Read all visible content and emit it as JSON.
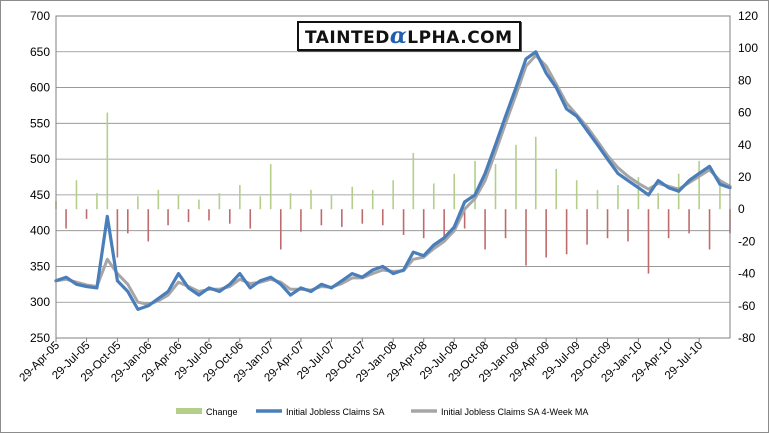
{
  "logo": {
    "text": "TaintedAlpha.com",
    "prefix": "TAINTED",
    "alpha_glyph": "α",
    "suffix": "LPHA.COM"
  },
  "colors": {
    "change_bar_pos": "#b3cf8a",
    "change_bar_neg": "#c06b6b",
    "claims_line": "#4a7ebb",
    "ma_line": "#a6a6a6",
    "grid": "#8c8c8c"
  },
  "chart_data": {
    "type": "combo",
    "title": "",
    "xlabel": "",
    "ylabel_left": "",
    "ylabel_right": "",
    "x_range": [
      "2005-04-29",
      "2010-10-29"
    ],
    "ylim_left": [
      250,
      700
    ],
    "yticks_left": [
      250,
      300,
      350,
      400,
      450,
      500,
      550,
      600,
      650,
      700
    ],
    "ylim_right": [
      -80,
      120
    ],
    "yticks_right": [
      -80,
      -60,
      -40,
      -20,
      0,
      20,
      40,
      60,
      80,
      100,
      120
    ],
    "x_tick_labels": [
      "29-Apr-05",
      "29-Jul-05",
      "29-Oct-05",
      "29-Jan-06",
      "29-Apr-06",
      "29-Jul-06",
      "29-Oct-06",
      "29-Jan-07",
      "29-Apr-07",
      "29-Jul-07",
      "29-Oct-07",
      "29-Jan-08",
      "29-Apr-08",
      "29-Jul-08",
      "29-Oct-08",
      "29-Jan-09",
      "29-Apr-09",
      "29-Jul-09",
      "29-Oct-09",
      "29-Jan-10",
      "29-Apr-10",
      "29-Jul-10"
    ],
    "grid": "horizontal",
    "legend_position": "bottom",
    "x_dates": [
      "2005-04-29",
      "2005-05-29",
      "2005-06-29",
      "2005-07-29",
      "2005-08-29",
      "2005-09-29",
      "2005-10-29",
      "2005-11-29",
      "2005-12-29",
      "2006-01-29",
      "2006-02-28",
      "2006-03-29",
      "2006-04-29",
      "2006-05-29",
      "2006-06-29",
      "2006-07-29",
      "2006-08-29",
      "2006-09-29",
      "2006-10-29",
      "2006-11-29",
      "2006-12-29",
      "2007-01-29",
      "2007-02-28",
      "2007-03-29",
      "2007-04-29",
      "2007-05-29",
      "2007-06-29",
      "2007-07-29",
      "2007-08-29",
      "2007-09-29",
      "2007-10-29",
      "2007-11-29",
      "2007-12-29",
      "2008-01-29",
      "2008-02-29",
      "2008-03-29",
      "2008-04-29",
      "2008-05-29",
      "2008-06-29",
      "2008-07-29",
      "2008-08-29",
      "2008-09-29",
      "2008-10-29",
      "2008-11-29",
      "2008-12-29",
      "2009-01-29",
      "2009-02-28",
      "2009-03-29",
      "2009-04-29",
      "2009-05-29",
      "2009-06-29",
      "2009-07-29",
      "2009-08-29",
      "2009-09-29",
      "2009-10-29",
      "2009-11-29",
      "2009-12-29",
      "2010-01-29",
      "2010-02-28",
      "2010-03-29",
      "2010-04-29",
      "2010-05-29",
      "2010-06-29",
      "2010-07-29",
      "2010-08-29",
      "2010-09-29",
      "2010-10-29"
    ],
    "series": [
      {
        "name": "Change",
        "type": "bar",
        "axis": "right",
        "values": [
          5,
          -12,
          18,
          -6,
          10,
          60,
          -30,
          -15,
          8,
          -20,
          12,
          -10,
          9,
          -8,
          6,
          -7,
          10,
          -9,
          15,
          -12,
          8,
          28,
          -25,
          10,
          -14,
          12,
          -10,
          9,
          -11,
          14,
          -9,
          12,
          -10,
          18,
          -16,
          35,
          -18,
          16,
          -20,
          22,
          -12,
          30,
          -25,
          28,
          -18,
          40,
          -35,
          45,
          -30,
          25,
          -28,
          18,
          -22,
          12,
          -18,
          15,
          -20,
          20,
          -40,
          10,
          -18,
          22,
          -15,
          30,
          -25,
          18,
          -15
        ]
      },
      {
        "name": "Initial Jobless Claims SA",
        "type": "line",
        "axis": "left",
        "values": [
          330,
          335,
          325,
          322,
          320,
          420,
          330,
          315,
          290,
          295,
          305,
          315,
          340,
          320,
          310,
          320,
          315,
          325,
          340,
          320,
          330,
          335,
          325,
          310,
          320,
          315,
          325,
          320,
          330,
          340,
          335,
          345,
          350,
          340,
          345,
          370,
          365,
          380,
          390,
          405,
          440,
          450,
          480,
          520,
          560,
          600,
          640,
          650,
          620,
          600,
          570,
          560,
          540,
          520,
          500,
          480,
          470,
          460,
          450,
          470,
          460,
          455,
          470,
          480,
          490,
          465,
          460
        ]
      },
      {
        "name": "Initial Jobless Claims SA 4-Week MA",
        "type": "line",
        "axis": "left",
        "values": [
          330,
          332,
          328,
          324,
          322,
          360,
          340,
          325,
          300,
          297,
          302,
          310,
          328,
          322,
          315,
          318,
          318,
          322,
          332,
          326,
          328,
          332,
          328,
          318,
          318,
          317,
          322,
          321,
          326,
          334,
          334,
          340,
          345,
          343,
          344,
          360,
          363,
          375,
          385,
          400,
          430,
          445,
          470,
          510,
          550,
          590,
          630,
          645,
          630,
          605,
          578,
          562,
          545,
          525,
          505,
          488,
          476,
          466,
          458,
          466,
          462,
          458,
          467,
          476,
          485,
          470,
          462
        ]
      }
    ]
  }
}
